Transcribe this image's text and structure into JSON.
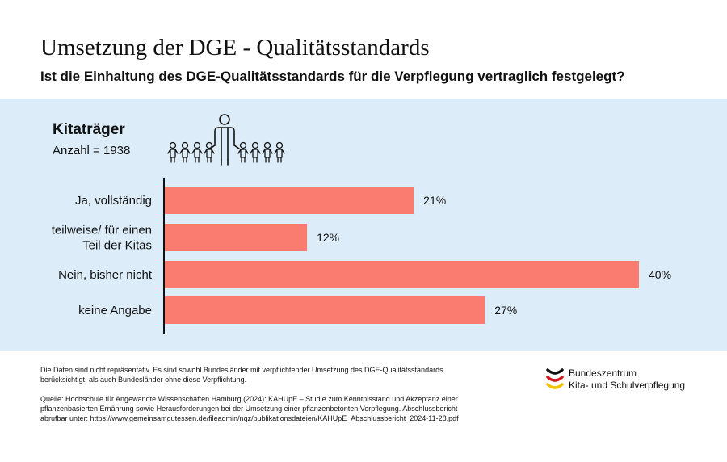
{
  "header": {
    "title": "Umsetzung der DGE - Qualitätsstandards",
    "subtitle": "Ist die Einhaltung des DGE-Qualitätsstandards für die Verpflegung vertraglich festgelegt?"
  },
  "group": {
    "label": "Kitaträger",
    "count": "Anzahl = 1938",
    "icon": "children-with-adult-icon"
  },
  "colors": {
    "background": "#dcedf9",
    "bar": "#fa7b6f",
    "text": "#111111"
  },
  "chart_data": {
    "type": "bar",
    "orientation": "horizontal",
    "categories": [
      [
        "Ja, vollständig"
      ],
      [
        "teilweise/ für einen",
        "Teil der Kitas"
      ],
      [
        "Nein, bisher nicht"
      ],
      [
        "keine Angabe"
      ]
    ],
    "values": [
      21,
      12,
      40,
      27
    ],
    "labels": [
      "21%",
      "12%",
      "40%",
      "27%"
    ],
    "xlim": [
      0,
      40
    ],
    "grid": false
  },
  "footer": {
    "note_lines": [
      "Die Daten sind nicht repräsentativ. Es sind sowohl Bundesländer mit verpflichtender Umsetzung des DGE-Qualitätsstandards",
      "berücksichtigt, als auch Bundesländer ohne diese Verpflichtung."
    ],
    "source_lines": [
      "Quelle: Hochschule für Angewandte Wissenschaften Hamburg (2024): KAHUpE – Studie zum Kenntnisstand und Akzeptanz einer",
      "pflanzenbasierten Ernährung sowie Herausforderungen bei der Umsetzung einer pflanzenbetonten Verpflegung. Abschlussbericht",
      "abrufbar unter: https://www.gemeinsamgutessen.de/fileadmin/nqz/publikationsdateien/KAHUpE_Abschlussbericht_2024-11-28.pdf"
    ]
  },
  "logo": {
    "line1": "Bundeszentrum",
    "line2": "Kita- und Schulverpflegung",
    "icon": "flag-arc-logo-icon",
    "colors": [
      "#111111",
      "#d3171d",
      "#f2c100"
    ]
  }
}
